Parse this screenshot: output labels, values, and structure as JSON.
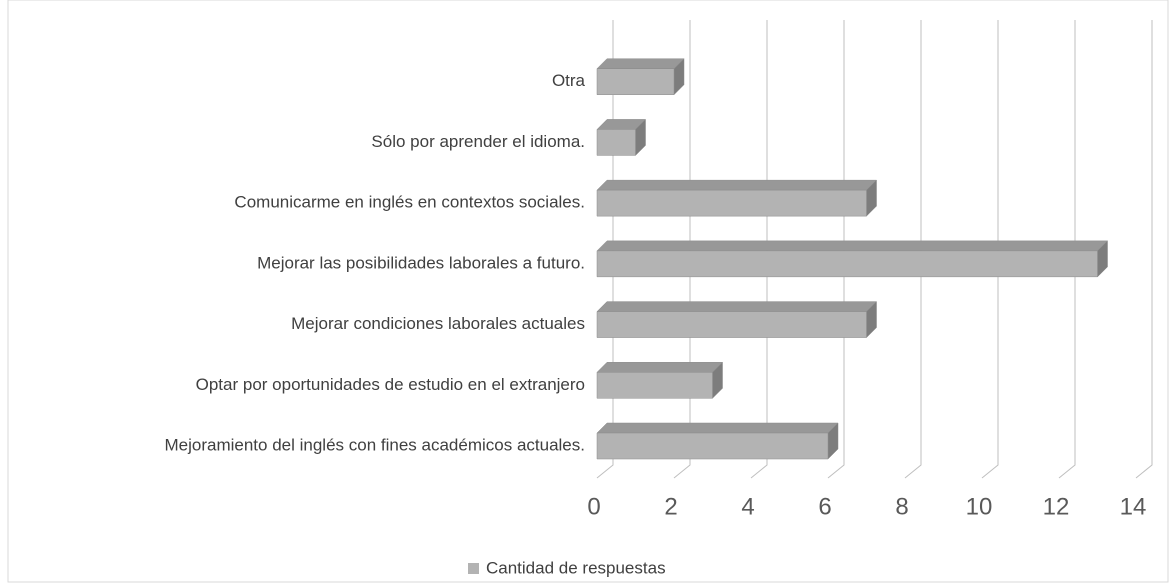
{
  "chart_data": {
    "type": "bar",
    "orientation": "horizontal",
    "three_d": true,
    "categories": [
      "Mejoramiento del inglés con fines académicos actuales.",
      "Optar por oportunidades de estudio en el extranjero",
      "Mejorar condiciones laborales actuales",
      "Mejorar las posibilidades laborales a futuro.",
      "Comunicarme en inglés en contextos sociales.",
      "Sólo por aprender el idioma.",
      "Otra"
    ],
    "series": [
      {
        "name": "Cantidad de respuestas",
        "color": "#b3b3b3",
        "values": [
          6,
          3,
          7,
          13,
          7,
          1,
          2
        ]
      }
    ],
    "xlim": [
      0,
      14
    ],
    "xticks": [
      0,
      2,
      4,
      6,
      8,
      10,
      12,
      14
    ],
    "grid": true,
    "legend": "bottom"
  }
}
